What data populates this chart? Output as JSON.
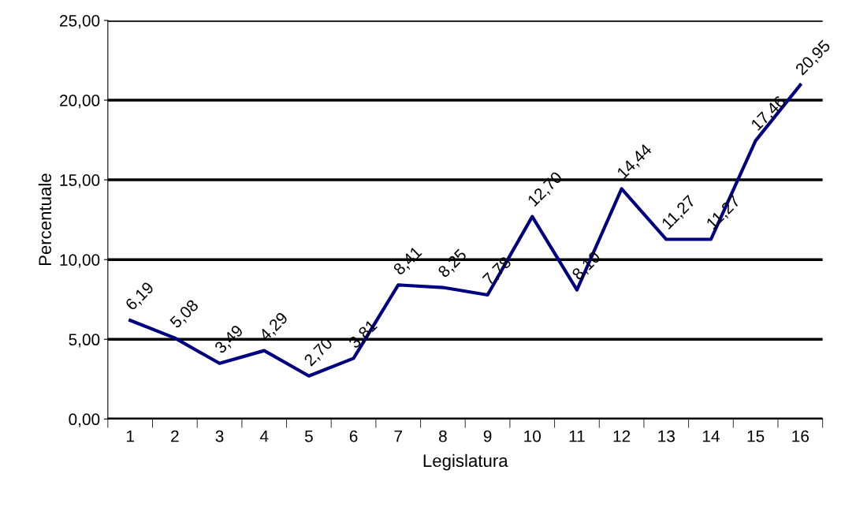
{
  "chart_data": {
    "type": "line",
    "xlabel": "Legislatura",
    "ylabel": "Percentuale",
    "categories": [
      "1",
      "2",
      "3",
      "4",
      "5",
      "6",
      "7",
      "8",
      "9",
      "10",
      "11",
      "12",
      "13",
      "14",
      "15",
      "16"
    ],
    "series": [
      {
        "color": "#000080",
        "values": [
          6.19,
          5.08,
          3.49,
          4.29,
          2.7,
          3.81,
          8.41,
          8.25,
          7.78,
          12.7,
          8.1,
          14.44,
          11.27,
          11.27,
          17.46,
          20.95
        ],
        "value_labels": [
          "6,19",
          "5,08",
          "3,49",
          "4,29",
          "2,70",
          "3,81",
          "8,41",
          "8,25",
          "7,78",
          "12,70",
          "8,10",
          "14,44",
          "11,27",
          "11,27",
          "17,46",
          "20,95"
        ]
      }
    ],
    "ylim": [
      0,
      25
    ],
    "yticks": [
      {
        "value": 0,
        "label": "0,00"
      },
      {
        "value": 5,
        "label": "5,00"
      },
      {
        "value": 10,
        "label": "10,00"
      },
      {
        "value": 15,
        "label": "15,00"
      },
      {
        "value": 20,
        "label": "20,00"
      },
      {
        "value": 25,
        "label": "25,00"
      }
    ],
    "grid": "y",
    "legend": false,
    "marker": "none",
    "line_style": "solid"
  }
}
